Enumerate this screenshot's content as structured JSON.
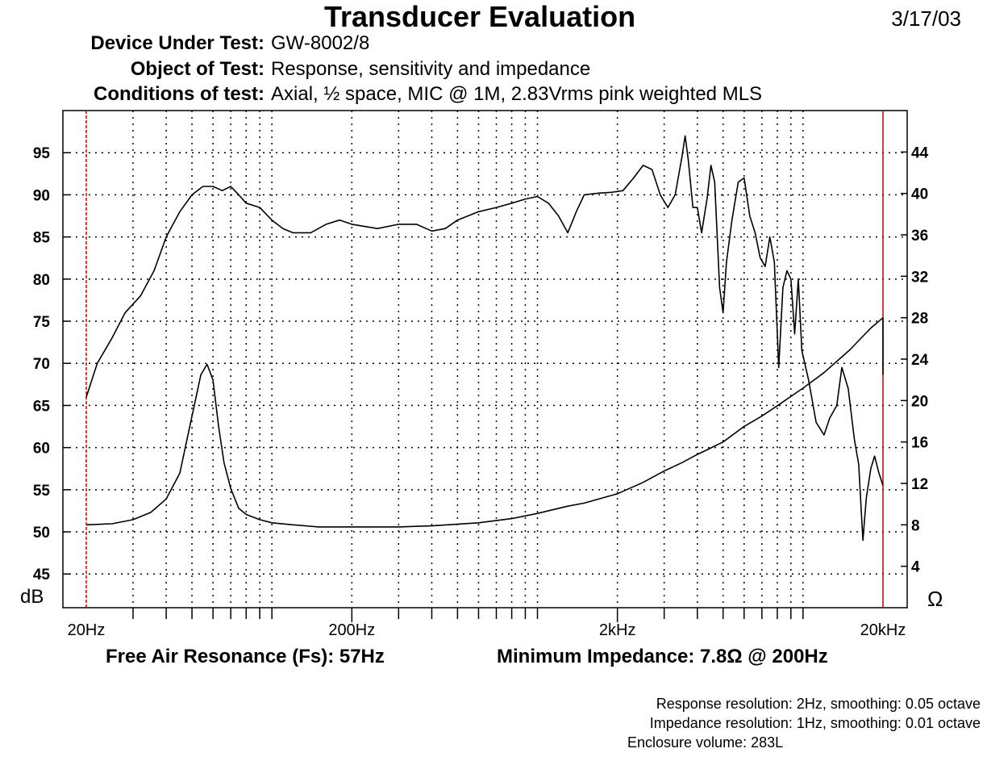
{
  "header": {
    "title": "Transducer Evaluation",
    "date": "3/17/03",
    "rows": [
      {
        "label": "Device Under Test:",
        "value": "GW-8002/8"
      },
      {
        "label": "Object of Test:",
        "value": "Response, sensitivity and impedance"
      },
      {
        "label": "Conditions of test:",
        "value": "Axial, ½ space, MIC @ 1M, 2.83Vrms pink weighted MLS"
      }
    ]
  },
  "footer": {
    "fs": "Free Air Resonance (Fs): 57Hz",
    "min_impedance": "Minimum Impedance: 7.8Ω @ 200Hz",
    "notes": [
      "Response resolution: 2Hz, smoothing: 0.05 octave",
      "Impedance resolution: 1Hz, smoothing: 0.01 octave",
      "Enclosure volume: 283L"
    ]
  },
  "colors": {
    "marker_line": "#cc0000",
    "trace": "#000000",
    "grid": "#000000"
  },
  "chart_data": {
    "type": "line",
    "x_scale": "log",
    "xlim": [
      20,
      20000
    ],
    "x_ticks": [
      {
        "v": 20,
        "label": "20Hz"
      },
      {
        "v": 200,
        "label": "200Hz"
      },
      {
        "v": 2000,
        "label": "2kHz"
      },
      {
        "v": 20000,
        "label": "20kHz"
      }
    ],
    "ylabel_left": "dB",
    "ylabel_right": "Ω",
    "ylim_left": [
      41,
      100
    ],
    "ylim_right": [
      0,
      48
    ],
    "y_ticks_left": [
      45,
      50,
      55,
      60,
      65,
      70,
      75,
      80,
      85,
      90,
      95
    ],
    "y_ticks_right": [
      4,
      8,
      12,
      16,
      20,
      24,
      28,
      32,
      36,
      40,
      44
    ],
    "grid": true,
    "markers_x": [
      20,
      20000
    ],
    "series": [
      {
        "axis": "left",
        "points": [
          [
            20,
            66
          ],
          [
            22,
            70
          ],
          [
            25,
            73
          ],
          [
            28,
            76
          ],
          [
            32,
            78
          ],
          [
            36,
            81
          ],
          [
            40,
            85
          ],
          [
            45,
            88
          ],
          [
            50,
            90
          ],
          [
            55,
            91
          ],
          [
            60,
            91
          ],
          [
            65,
            90.5
          ],
          [
            70,
            91
          ],
          [
            75,
            90
          ],
          [
            80,
            89
          ],
          [
            90,
            88.5
          ],
          [
            100,
            87
          ],
          [
            110,
            86
          ],
          [
            120,
            85.5
          ],
          [
            140,
            85.5
          ],
          [
            160,
            86.5
          ],
          [
            180,
            87
          ],
          [
            200,
            86.5
          ],
          [
            250,
            86
          ],
          [
            300,
            86.5
          ],
          [
            350,
            86.5
          ],
          [
            400,
            85.7
          ],
          [
            450,
            86
          ],
          [
            500,
            87
          ],
          [
            600,
            88
          ],
          [
            700,
            88.5
          ],
          [
            800,
            89
          ],
          [
            900,
            89.5
          ],
          [
            1000,
            89.8
          ],
          [
            1100,
            89
          ],
          [
            1200,
            87.5
          ],
          [
            1300,
            85.5
          ],
          [
            1400,
            88
          ],
          [
            1500,
            90
          ],
          [
            1700,
            90.2
          ],
          [
            1900,
            90.3
          ],
          [
            2100,
            90.5
          ],
          [
            2300,
            92
          ],
          [
            2500,
            93.5
          ],
          [
            2700,
            93
          ],
          [
            2900,
            90
          ],
          [
            3100,
            88.5
          ],
          [
            3300,
            90
          ],
          [
            3500,
            94.5
          ],
          [
            3600,
            97
          ],
          [
            3700,
            94
          ],
          [
            3850,
            88.5
          ],
          [
            4000,
            88.5
          ],
          [
            4150,
            85.5
          ],
          [
            4350,
            89.5
          ],
          [
            4500,
            93.5
          ],
          [
            4650,
            91.5
          ],
          [
            4850,
            79
          ],
          [
            5000,
            76
          ],
          [
            5150,
            82
          ],
          [
            5400,
            87
          ],
          [
            5700,
            91.5
          ],
          [
            6000,
            92
          ],
          [
            6300,
            87.5
          ],
          [
            6600,
            85.5
          ],
          [
            6900,
            82.5
          ],
          [
            7200,
            81.5
          ],
          [
            7500,
            85
          ],
          [
            7800,
            82
          ],
          [
            8100,
            69.5
          ],
          [
            8400,
            79
          ],
          [
            8700,
            81
          ],
          [
            9000,
            80
          ],
          [
            9300,
            73.5
          ],
          [
            9600,
            80
          ],
          [
            9900,
            71.5
          ],
          [
            10500,
            68
          ],
          [
            11200,
            63
          ],
          [
            12000,
            61.5
          ],
          [
            12600,
            63.5
          ],
          [
            13400,
            65
          ],
          [
            14000,
            69.5
          ],
          [
            14800,
            67
          ],
          [
            15600,
            61
          ],
          [
            16200,
            58
          ],
          [
            16800,
            49
          ],
          [
            17300,
            54
          ],
          [
            18000,
            57.5
          ],
          [
            18600,
            59
          ],
          [
            19300,
            57
          ],
          [
            20000,
            55.5
          ]
        ]
      },
      {
        "axis": "right",
        "points": [
          [
            20,
            8
          ],
          [
            25,
            8.1
          ],
          [
            30,
            8.5
          ],
          [
            35,
            9.2
          ],
          [
            40,
            10.5
          ],
          [
            45,
            13
          ],
          [
            50,
            18.5
          ],
          [
            54,
            22.5
          ],
          [
            57,
            23.5
          ],
          [
            60,
            22
          ],
          [
            63,
            17.5
          ],
          [
            66,
            14
          ],
          [
            70,
            11.5
          ],
          [
            75,
            9.6
          ],
          [
            80,
            9
          ],
          [
            90,
            8.5
          ],
          [
            100,
            8.2
          ],
          [
            120,
            8
          ],
          [
            150,
            7.8
          ],
          [
            200,
            7.8
          ],
          [
            300,
            7.8
          ],
          [
            400,
            7.9
          ],
          [
            600,
            8.2
          ],
          [
            800,
            8.6
          ],
          [
            1000,
            9.1
          ],
          [
            1300,
            9.8
          ],
          [
            1500,
            10.1
          ],
          [
            2000,
            11
          ],
          [
            2500,
            12.1
          ],
          [
            3000,
            13.2
          ],
          [
            3500,
            14
          ],
          [
            4000,
            14.8
          ],
          [
            5000,
            16
          ],
          [
            6000,
            17.5
          ],
          [
            7000,
            18.5
          ],
          [
            8000,
            19.5
          ],
          [
            10000,
            21.2
          ],
          [
            12000,
            22.7
          ],
          [
            15000,
            24.9
          ],
          [
            18000,
            27
          ],
          [
            20000,
            28
          ]
        ]
      }
    ]
  }
}
